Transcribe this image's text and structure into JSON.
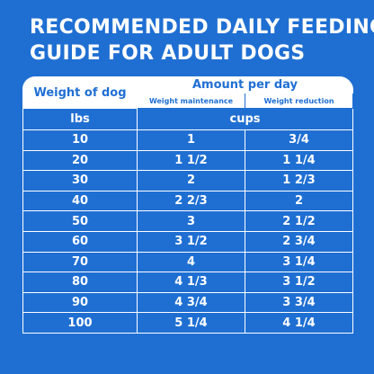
{
  "header": {
    "title": [
      "RECOMMENDED DAILY FEEDING",
      "GUIDE FOR ADULT DOGS"
    ]
  },
  "table": {
    "weight_header": "Weight of dog",
    "amount_header": "Amount per day",
    "subheaders": [
      "Weight maintenance",
      "Weight reduction"
    ],
    "units": [
      "lbs",
      "cups"
    ],
    "rows": [
      [
        "10",
        "1",
        "3/4"
      ],
      [
        "20",
        "1 1/2",
        "1 1/4"
      ],
      [
        "30",
        "2",
        "1 2/3"
      ],
      [
        "40",
        "2 2/3",
        "2"
      ],
      [
        "50",
        "3",
        "2 1/2"
      ],
      [
        "60",
        "3 1/2",
        "2 3/4"
      ],
      [
        "70",
        "4",
        "3 1/4"
      ],
      [
        "80",
        "4 1/3",
        "3 1/2"
      ],
      [
        "90",
        "4 3/4",
        "3 3/4"
      ],
      [
        "100",
        "5 1/4",
        "4 1/4"
      ]
    ]
  }
}
